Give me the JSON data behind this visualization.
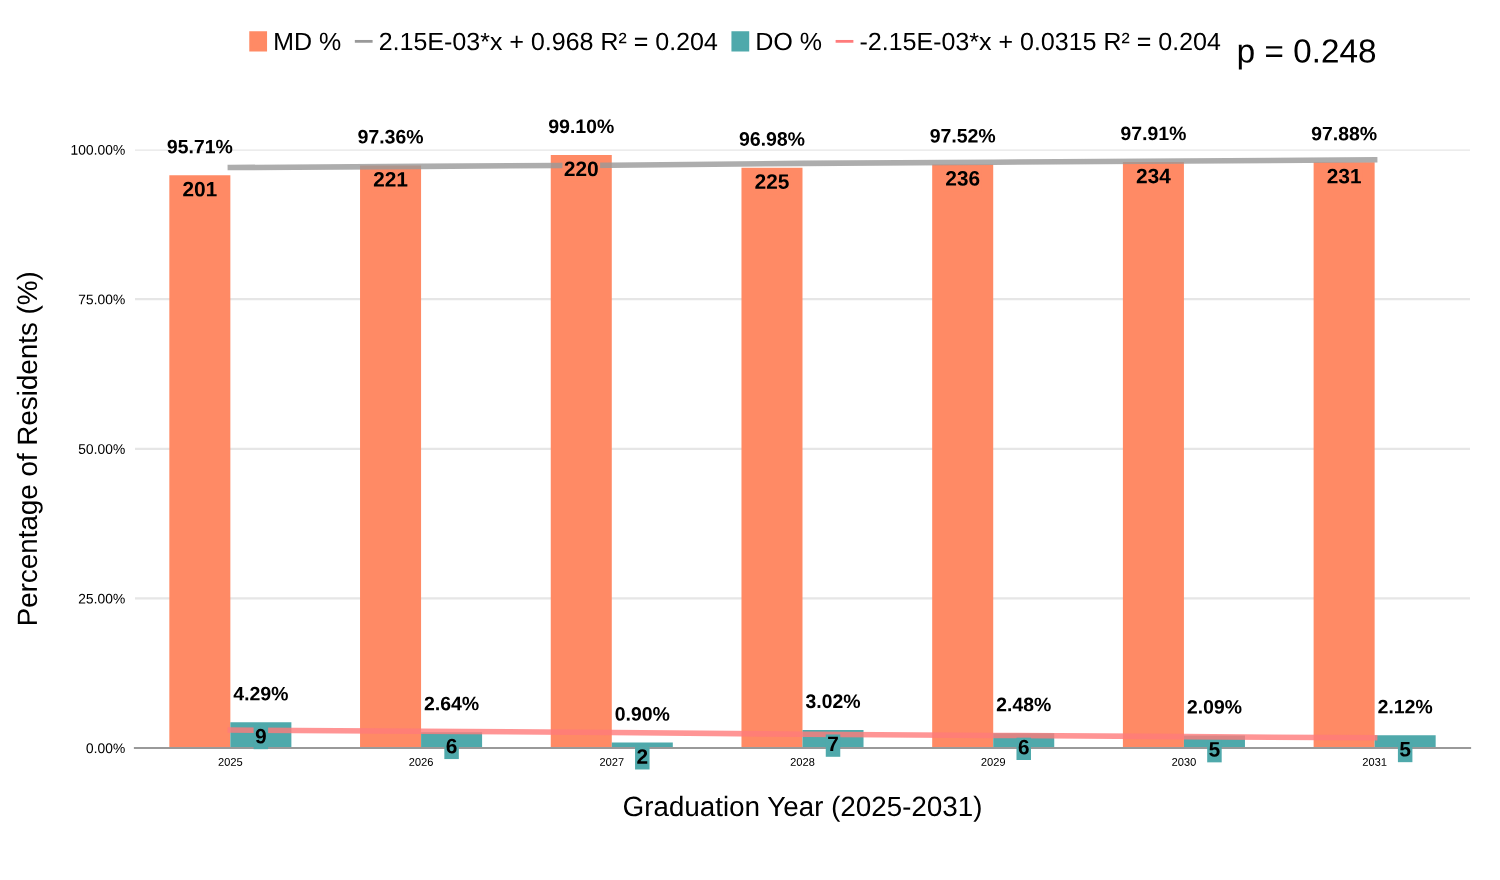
{
  "chart_data": {
    "type": "bar",
    "xlabel": "Graduation Year (2025-2031)",
    "ylabel": "Percentage of Residents (%)",
    "categories": [
      "2025",
      "2026",
      "2027",
      "2028",
      "2029",
      "2030",
      "2031"
    ],
    "ylim": [
      0,
      100
    ],
    "yticks": [
      {
        "value": 0,
        "label": "0.00%"
      },
      {
        "value": 25,
        "label": "25.00%"
      },
      {
        "value": 50,
        "label": "50.00%"
      },
      {
        "value": 75,
        "label": "75.00%"
      },
      {
        "value": 100,
        "label": "100.00%"
      }
    ],
    "grid": "y",
    "legend": "top",
    "series": [
      {
        "name": "MD %",
        "color": "#ff8a65",
        "values": [
          95.71,
          97.36,
          99.1,
          96.98,
          97.52,
          97.91,
          97.88
        ],
        "value_labels": [
          "95.71%",
          "97.36%",
          "99.10%",
          "96.98%",
          "97.52%",
          "97.91%",
          "97.88%"
        ]
      },
      {
        "name": "2.15E-03*x + 0.968 R² = 0.204",
        "type": "line",
        "color": "#999999",
        "values": [
          97.0,
          97.2,
          97.4,
          97.7,
          97.9,
          98.1,
          98.3
        ]
      },
      {
        "name": "DO %",
        "color": "#4fa9ab",
        "values": [
          4.29,
          2.64,
          0.9,
          3.02,
          2.48,
          2.09,
          2.12
        ],
        "value_labels": [
          "4.29%",
          "2.64%",
          "0.90%",
          "3.02%",
          "2.48%",
          "2.09%",
          "2.12%"
        ]
      },
      {
        "name": "-2.15E-03*x + 0.0315 R² = 0.204",
        "type": "line",
        "color": "#ff7b7b",
        "values": [
          3.0,
          2.8,
          2.6,
          2.3,
          2.1,
          1.9,
          1.7
        ]
      }
    ],
    "annotations": [
      "p = 0.248",
      {
        "text": "201",
        "x": "2025",
        "y": 95.71
      },
      {
        "text": "221",
        "x": "2026",
        "y": 97.36
      },
      {
        "text": "220",
        "x": "2027",
        "y": 99.1
      },
      {
        "text": "225",
        "x": "2028",
        "y": 96.98
      },
      {
        "text": "236",
        "x": "2029",
        "y": 97.52
      },
      {
        "text": "234",
        "x": "2030",
        "y": 97.91
      },
      {
        "text": "231",
        "x": "2031",
        "y": 97.88
      },
      {
        "text": "9",
        "x": "2025",
        "y": 4.29
      },
      {
        "text": "6",
        "x": "2026",
        "y": 2.64
      },
      {
        "text": "2",
        "x": "2027",
        "y": 0.9
      },
      {
        "text": "7",
        "x": "2028",
        "y": 3.02
      },
      {
        "text": "6",
        "x": "2029",
        "y": 2.48
      },
      {
        "text": "5",
        "x": "2030",
        "y": 2.09
      },
      {
        "text": "5",
        "x": "2031",
        "y": 2.12
      }
    ]
  }
}
